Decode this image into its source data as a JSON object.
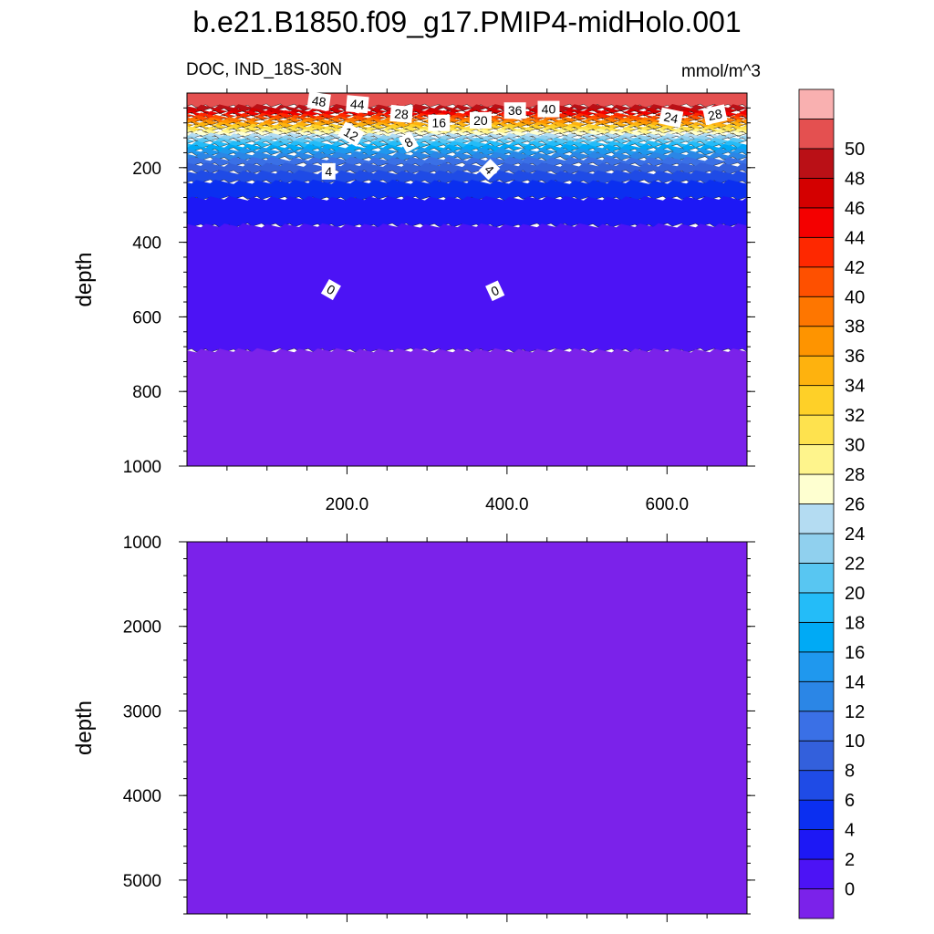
{
  "title": "b.e21.B1850.f09_g17.PMIP4-midHolo.001",
  "variable_label": "DOC, IND_18S-30N",
  "units": "mmol/m^3",
  "colorbar": {
    "labels": [
      "0",
      "2",
      "4",
      "6",
      "8",
      "10",
      "12",
      "14",
      "16",
      "18",
      "20",
      "22",
      "24",
      "26",
      "28",
      "30",
      "32",
      "34",
      "36",
      "38",
      "40",
      "42",
      "44",
      "46",
      "48",
      "50"
    ],
    "colors": [
      "#7b22ea",
      "#4c13f5",
      "#1d18f5",
      "#0b2ff0",
      "#1f4be6",
      "#3360dc",
      "#3a70e6",
      "#2b86e6",
      "#1f98ee",
      "#00aaf5",
      "#24bcf8",
      "#58c6f2",
      "#90d0ee",
      "#b4dcf2",
      "#feffd0",
      "#fef48c",
      "#fee24e",
      "#fed028",
      "#feb20e",
      "#fe9400",
      "#fe7600",
      "#fe5000",
      "#fe2800",
      "#f40000",
      "#d40000",
      "#ba1016",
      "#e45050",
      "#f9b0b0"
    ]
  },
  "chart_data": [
    {
      "type": "contour",
      "panel": "upper",
      "xlabel": "",
      "ylabel": "depth",
      "xlim": [
        0,
        700
      ],
      "ylim": [
        1000,
        0
      ],
      "y_reversed": true,
      "x_tick_labels": [
        "200.0",
        "400.0",
        "600.0"
      ],
      "x_ticks": [
        200,
        400,
        600
      ],
      "y_tick_labels": [
        "200",
        "400",
        "600",
        "800",
        "1000"
      ],
      "y_ticks": [
        200,
        400,
        600,
        800,
        1000
      ],
      "bands": [
        {
          "level_min": 50,
          "depth_top": 0,
          "depth_bottom": 35
        },
        {
          "level_min": 48,
          "depth_top": 35,
          "depth_bottom": 45
        },
        {
          "level_min": 46,
          "depth_top": 45,
          "depth_bottom": 52
        },
        {
          "level_min": 44,
          "depth_top": 52,
          "depth_bottom": 58
        },
        {
          "level_min": 42,
          "depth_top": 58,
          "depth_bottom": 64
        },
        {
          "level_min": 40,
          "depth_top": 64,
          "depth_bottom": 70
        },
        {
          "level_min": 38,
          "depth_top": 70,
          "depth_bottom": 76
        },
        {
          "level_min": 36,
          "depth_top": 76,
          "depth_bottom": 82
        },
        {
          "level_min": 34,
          "depth_top": 82,
          "depth_bottom": 88
        },
        {
          "level_min": 32,
          "depth_top": 88,
          "depth_bottom": 94
        },
        {
          "level_min": 30,
          "depth_top": 94,
          "depth_bottom": 100
        },
        {
          "level_min": 28,
          "depth_top": 100,
          "depth_bottom": 106
        },
        {
          "level_min": 26,
          "depth_top": 106,
          "depth_bottom": 112
        },
        {
          "level_min": 24,
          "depth_top": 112,
          "depth_bottom": 118
        },
        {
          "level_min": 22,
          "depth_top": 118,
          "depth_bottom": 125
        },
        {
          "level_min": 20,
          "depth_top": 125,
          "depth_bottom": 133
        },
        {
          "level_min": 18,
          "depth_top": 133,
          "depth_bottom": 142
        },
        {
          "level_min": 16,
          "depth_top": 142,
          "depth_bottom": 152
        },
        {
          "level_min": 14,
          "depth_top": 152,
          "depth_bottom": 163
        },
        {
          "level_min": 12,
          "depth_top": 163,
          "depth_bottom": 176
        },
        {
          "level_min": 10,
          "depth_top": 176,
          "depth_bottom": 192
        },
        {
          "level_min": 8,
          "depth_top": 192,
          "depth_bottom": 212
        },
        {
          "level_min": 6,
          "depth_top": 212,
          "depth_bottom": 238
        },
        {
          "level_min": 4,
          "depth_top": 238,
          "depth_bottom": 282
        },
        {
          "level_min": 2,
          "depth_top": 282,
          "depth_bottom": 355
        },
        {
          "level_min": 0,
          "depth_top": 355,
          "depth_bottom": 690
        },
        {
          "level_min": -2,
          "depth_top": 690,
          "depth_bottom": 1000
        }
      ],
      "contour_labels": [
        {
          "text": "48",
          "x": 165,
          "depth": 22,
          "angle": 8
        },
        {
          "text": "44",
          "x": 213,
          "depth": 30,
          "angle": 5
        },
        {
          "text": "28",
          "x": 268,
          "depth": 56,
          "angle": 5
        },
        {
          "text": "16",
          "x": 315,
          "depth": 80,
          "angle": 0
        },
        {
          "text": "20",
          "x": 367,
          "depth": 73,
          "angle": 0
        },
        {
          "text": "36",
          "x": 410,
          "depth": 47,
          "angle": 0
        },
        {
          "text": "40",
          "x": 452,
          "depth": 43,
          "angle": 0
        },
        {
          "text": "24",
          "x": 605,
          "depth": 66,
          "angle": 12
        },
        {
          "text": "28",
          "x": 660,
          "depth": 58,
          "angle": -12
        },
        {
          "text": "12",
          "x": 205,
          "depth": 110,
          "angle": 30
        },
        {
          "text": "8",
          "x": 277,
          "depth": 132,
          "angle": -30
        },
        {
          "text": "4",
          "x": 177,
          "depth": 210,
          "angle": 0
        },
        {
          "text": "4",
          "x": 378,
          "depth": 205,
          "angle": 45
        },
        {
          "text": "0",
          "x": 180,
          "depth": 527,
          "angle": 30
        },
        {
          "text": "0",
          "x": 385,
          "depth": 530,
          "angle": -25
        }
      ]
    },
    {
      "type": "contour",
      "panel": "lower",
      "xlabel": "",
      "ylabel": "depth",
      "xlim": [
        0,
        700
      ],
      "ylim": [
        5400,
        1000
      ],
      "y_reversed": true,
      "y_tick_labels": [
        "1000",
        "2000",
        "3000",
        "4000",
        "5000"
      ],
      "y_ticks": [
        1000,
        2000,
        3000,
        4000,
        5000
      ],
      "bands": [
        {
          "level_min": -2,
          "depth_top": 1000,
          "depth_bottom": 5400
        }
      ]
    }
  ]
}
